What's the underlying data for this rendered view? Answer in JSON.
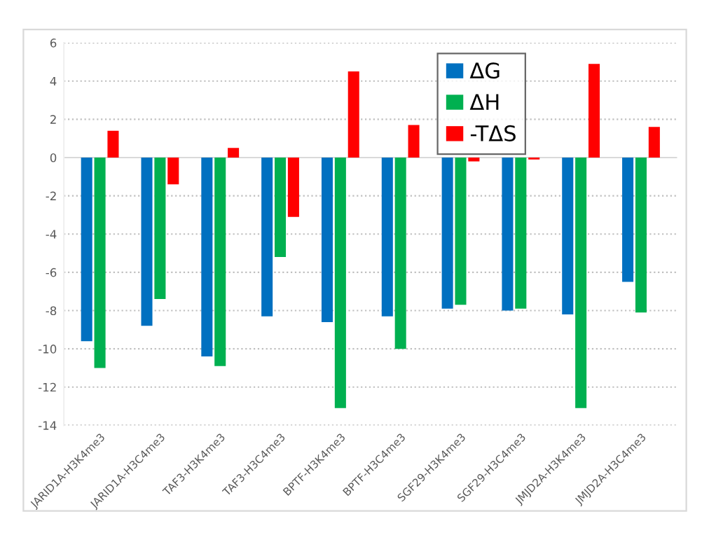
{
  "chart_data": {
    "type": "bar",
    "categories": [
      "JARID1A-H3K4me3",
      "JARID1A-H3C4me3",
      "TAF3-H3K4me3",
      "TAF3-H3C4me3",
      "BPTF-H3K4me3",
      "BPTF-H3C4me3",
      "SGF29-H3K4me3",
      "SGF29-H3C4me3",
      "JMJD2A-H3K4me3",
      "JMJD2A-H3C4me3"
    ],
    "series": [
      {
        "name": "ΔG",
        "color": "#0070c0",
        "values": [
          -9.6,
          -8.8,
          -10.4,
          -8.3,
          -8.6,
          -8.3,
          -7.9,
          -8.0,
          -8.2,
          -6.5
        ]
      },
      {
        "name": "ΔH",
        "color": "#00b050",
        "values": [
          -11.0,
          -7.4,
          -10.9,
          -5.2,
          -13.1,
          -10.0,
          -7.7,
          -7.9,
          -13.1,
          -8.1
        ]
      },
      {
        "name": "-TΔS",
        "color": "#ff0000",
        "values": [
          1.4,
          -1.4,
          0.5,
          -3.1,
          4.5,
          1.7,
          -0.2,
          -0.1,
          4.9,
          1.6
        ]
      }
    ],
    "ylim": [
      -14,
      6
    ],
    "yticks": [
      -14,
      -12,
      -10,
      -8,
      -6,
      -4,
      -2,
      0,
      2,
      4,
      6
    ],
    "grid": "y",
    "legend": "top right"
  }
}
